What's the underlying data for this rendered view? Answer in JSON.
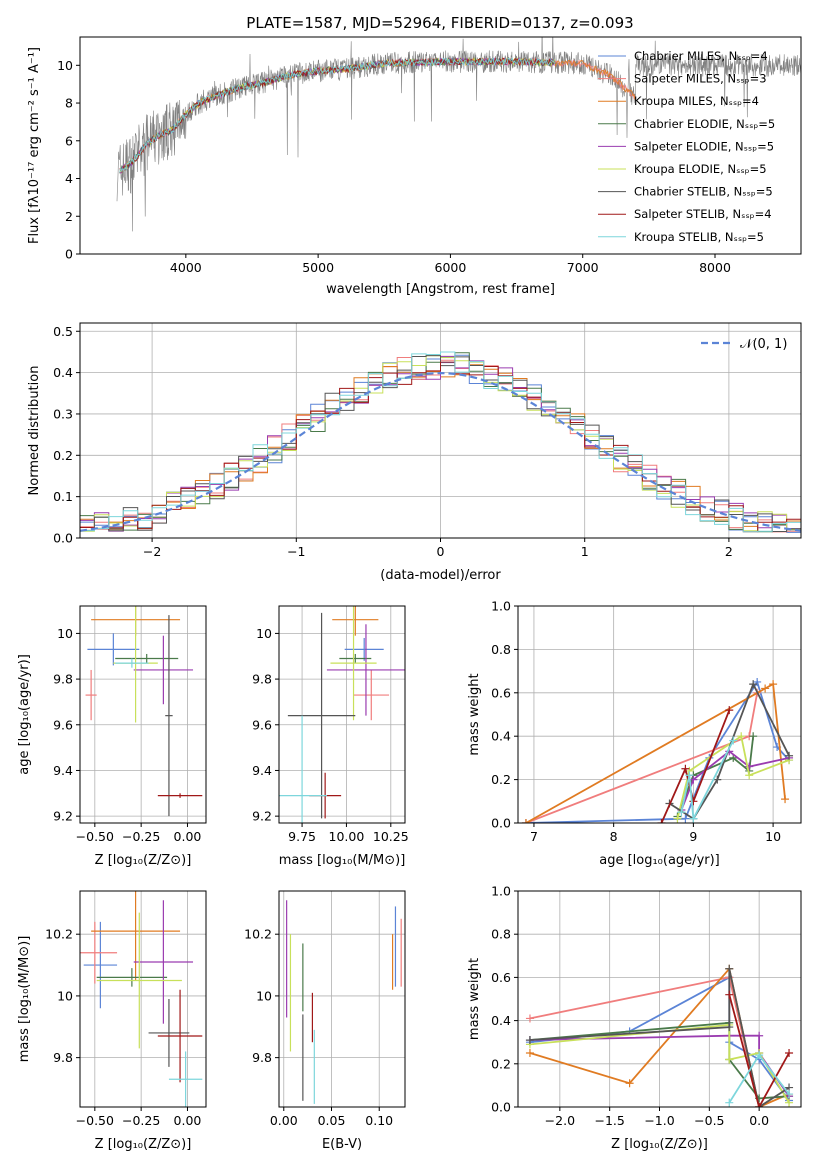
{
  "figure": {
    "title": "PLATE=1587, MJD=52964, FIBERID=0137, z=0.093",
    "colors": {
      "Chabrier MILES": "#5b84d6",
      "Salpeter MILES": "#f07d7d",
      "Kroupa MILES": "#e07b22",
      "Chabrier ELODIE": "#4a7a4a",
      "Salpeter ELODIE": "#9a3cb0",
      "Kroupa ELODIE": "#c8e05a",
      "Chabrier STELIB": "#555555",
      "Salpeter STELIB": "#a01818",
      "Kroupa STELIB": "#7dd6dc",
      "data": "#808080"
    }
  },
  "chart_data": [
    {
      "id": "spectrum",
      "type": "line",
      "title": "PLATE=1587, MJD=52964, FIBERID=0137, z=0.093",
      "xlabel": "wavelength [Angstrom, rest frame]",
      "ylabel": "Flux [fλ10⁻¹⁷ erg cm⁻² s⁻¹ A⁻¹]",
      "xlim": [
        3200,
        8650
      ],
      "ylim": [
        0,
        11.5
      ],
      "xticks": [
        4000,
        5000,
        6000,
        7000,
        8000
      ],
      "yticks": [
        0,
        2,
        4,
        6,
        8,
        10
      ],
      "grid": false,
      "legend_position": "top-right",
      "legend": [
        "Chabrier MILES, Nₛₛₚ=4",
        "Salpeter MILES, Nₛₛₚ=3",
        "Kroupa MILES, Nₛₛₚ=4",
        "Chabrier ELODIE, Nₛₛₚ=5",
        "Salpeter ELODIE, Nₛₛₚ=5",
        "Kroupa ELODIE, Nₛₛₚ=5",
        "Chabrier STELIB, Nₛₛₚ=5",
        "Salpeter STELIB, Nₛₛₚ=4",
        "Kroupa STELIB, Nₛₛₚ=5"
      ],
      "continuum": {
        "x": [
          3500,
          3600,
          3700,
          3800,
          3900,
          4000,
          4100,
          4200,
          4400,
          4600,
          4800,
          5000,
          5200,
          5500,
          6000,
          6500,
          7000,
          7200,
          7400
        ],
        "y": [
          4.4,
          4.9,
          5.8,
          6.3,
          6.6,
          7.4,
          8.0,
          8.3,
          8.8,
          9.1,
          9.5,
          9.7,
          9.8,
          10.1,
          10.2,
          10.2,
          10.1,
          9.5,
          8.3
        ]
      }
    },
    {
      "id": "residuals",
      "type": "line",
      "xlabel": "(data-model)/error",
      "ylabel": "Normed distribution",
      "xlim": [
        -2.5,
        2.5
      ],
      "ylim": [
        0,
        0.52
      ],
      "xticks": [
        -2,
        -1,
        0,
        1,
        2
      ],
      "yticks": [
        0.0,
        0.1,
        0.2,
        0.3,
        0.4,
        0.5
      ],
      "grid": true,
      "legend_position": "top-right",
      "legend": [
        "𝒩(0, 1)"
      ],
      "bin_width": 0.1
    },
    {
      "id": "age-vs-metallicity",
      "type": "scatter",
      "xlabel": "Z [log₁₀(Z/Z⊙)]",
      "ylabel": "age  [log₁₀(age/yr)]",
      "xlim": [
        -0.58,
        0.1
      ],
      "ylim": [
        9.17,
        10.12
      ],
      "xticks": [
        -0.5,
        -0.25,
        0.0
      ],
      "xtick_labels": [
        "−0.50",
        "−0.25",
        "0.00"
      ],
      "yticks": [
        9.2,
        9.4,
        9.6,
        9.8,
        10.0
      ],
      "grid": true,
      "points": [
        {
          "s": "Chabrier MILES",
          "x": -0.4,
          "xerr": 0.14,
          "y": 9.93,
          "yerr": 0.07
        },
        {
          "s": "Salpeter MILES",
          "x": -0.52,
          "xerr": 0.03,
          "y": 9.73,
          "yerr": 0.11
        },
        {
          "s": "Kroupa MILES",
          "x": -0.28,
          "xerr": 0.24,
          "y": 10.06,
          "yerr": 0.07
        },
        {
          "s": "Chabrier ELODIE",
          "x": -0.22,
          "xerr": 0.17,
          "y": 9.89,
          "yerr": 0.02
        },
        {
          "s": "Salpeter ELODIE",
          "x": -0.13,
          "xerr": 0.16,
          "y": 9.84,
          "yerr": 0.15
        },
        {
          "s": "Kroupa ELODIE",
          "x": -0.28,
          "xerr": 0.12,
          "y": 9.87,
          "yerr": 0.26
        },
        {
          "s": "Chabrier STELIB",
          "x": -0.1,
          "xerr": 0.02,
          "y": 9.64,
          "yerr": 0.44
        },
        {
          "s": "Salpeter STELIB",
          "x": -0.04,
          "xerr": 0.12,
          "y": 9.29,
          "yerr": 0.01
        },
        {
          "s": "Kroupa STELIB",
          "x": -0.3,
          "xerr": 0.09,
          "y": 9.87,
          "yerr": 0.02
        }
      ]
    },
    {
      "id": "age-vs-mass",
      "type": "scatter",
      "xlabel": "mass [log₁₀(M/M⊙)]",
      "ylabel": "",
      "xlim": [
        9.62,
        10.33
      ],
      "ylim": [
        9.17,
        10.12
      ],
      "xticks": [
        9.75,
        10.0,
        10.25
      ],
      "xtick_labels": [
        "9.75",
        "10.00",
        "10.25"
      ],
      "yticks": [
        9.2,
        9.4,
        9.6,
        9.8,
        10.0
      ],
      "grid": true,
      "points": [
        {
          "s": "Chabrier MILES",
          "x": 10.1,
          "xerr": 0.11,
          "y": 9.93,
          "yerr": 0.05
        },
        {
          "s": "Salpeter MILES",
          "x": 10.14,
          "xerr": 0.1,
          "y": 9.73,
          "yerr": 0.11
        },
        {
          "s": "Kroupa MILES",
          "x": 10.05,
          "xerr": 0.13,
          "y": 10.06,
          "yerr": 0.07
        },
        {
          "s": "Chabrier ELODIE",
          "x": 10.05,
          "xerr": 0.09,
          "y": 9.89,
          "yerr": 0.02
        },
        {
          "s": "Salpeter ELODIE",
          "x": 10.11,
          "xerr": 0.22,
          "y": 9.84,
          "yerr": 0.2
        },
        {
          "s": "Kroupa ELODIE",
          "x": 10.04,
          "xerr": 0.13,
          "y": 9.87,
          "yerr": 0.25
        },
        {
          "s": "Chabrier STELIB",
          "x": 9.86,
          "xerr": 0.19,
          "y": 9.64,
          "yerr": 0.45
        },
        {
          "s": "Salpeter STELIB",
          "x": 9.88,
          "xerr": 0.09,
          "y": 9.29,
          "yerr": 0.1
        },
        {
          "s": "Kroupa STELIB",
          "x": 9.75,
          "xerr": 0.14,
          "y": 9.29,
          "yerr": 0.35
        }
      ]
    },
    {
      "id": "mass-weight-vs-age",
      "type": "line",
      "xlabel": "age  [log₁₀(age/yr)]",
      "ylabel": "mass weight",
      "xlim": [
        6.8,
        10.35
      ],
      "ylim": [
        0,
        1.0
      ],
      "xticks": [
        7,
        8,
        9,
        10
      ],
      "yticks": [
        0.0,
        0.2,
        0.4,
        0.6,
        0.8,
        1.0
      ],
      "grid": true,
      "series": [
        {
          "s": "Chabrier MILES",
          "x": [
            6.9,
            8.9,
            9.2,
            9.8,
            10.05,
            10.2
          ],
          "y": [
            0.0,
            0.02,
            0.3,
            0.65,
            0.35,
            0.29
          ]
        },
        {
          "s": "Salpeter MILES",
          "x": [
            6.9,
            9.7,
            9.8
          ],
          "y": [
            0.0,
            0.4,
            0.6
          ]
        },
        {
          "s": "Kroupa MILES",
          "x": [
            6.9,
            9.9,
            10.0,
            10.15
          ],
          "y": [
            0.0,
            0.62,
            0.64,
            0.11
          ]
        },
        {
          "s": "Chabrier ELODIE",
          "x": [
            8.8,
            9.0,
            9.5,
            9.7,
            9.75
          ],
          "y": [
            0.03,
            0.22,
            0.3,
            0.24,
            0.4
          ]
        },
        {
          "s": "Salpeter ELODIE",
          "x": [
            8.85,
            9.0,
            9.45,
            9.7,
            10.2
          ],
          "y": [
            0.06,
            0.2,
            0.33,
            0.26,
            0.3
          ]
        },
        {
          "s": "Kroupa ELODIE",
          "x": [
            8.8,
            8.95,
            9.6,
            9.7,
            10.2
          ],
          "y": [
            0.02,
            0.24,
            0.4,
            0.22,
            0.29
          ]
        },
        {
          "s": "Chabrier STELIB",
          "x": [
            8.7,
            9.0,
            9.3,
            9.75,
            10.2
          ],
          "y": [
            0.09,
            0.02,
            0.2,
            0.64,
            0.31
          ]
        },
        {
          "s": "Salpeter STELIB",
          "x": [
            8.6,
            8.9,
            9.0,
            9.45
          ],
          "y": [
            0.0,
            0.25,
            0.1,
            0.52
          ]
        },
        {
          "s": "Kroupa STELIB",
          "x": [
            8.85,
            8.95,
            9.0,
            9.5
          ],
          "y": [
            0.05,
            0.22,
            0.02,
            0.38
          ]
        }
      ]
    },
    {
      "id": "mass-vs-metallicity",
      "type": "scatter",
      "xlabel": "Z [log₁₀(Z/Z⊙)]",
      "ylabel": "mass [log₁₀(M/M⊙)]",
      "xlim": [
        -0.58,
        0.1
      ],
      "ylim": [
        9.64,
        10.34
      ],
      "xticks": [
        -0.5,
        -0.25,
        0.0
      ],
      "xtick_labels": [
        "−0.50",
        "−0.25",
        "0.00"
      ],
      "yticks": [
        9.8,
        10.0,
        10.2
      ],
      "grid": true,
      "points": [
        {
          "s": "Chabrier MILES",
          "x": -0.47,
          "xerr": 0.09,
          "y": 10.1,
          "yerr": 0.14
        },
        {
          "s": "Salpeter MILES",
          "x": -0.5,
          "xerr": 0.12,
          "y": 10.14,
          "yerr": 0.1
        },
        {
          "s": "Kroupa MILES",
          "x": -0.28,
          "xerr": 0.24,
          "y": 10.21,
          "yerr": 0.16
        },
        {
          "s": "Chabrier ELODIE",
          "x": -0.3,
          "xerr": 0.19,
          "y": 10.06,
          "yerr": 0.03
        },
        {
          "s": "Salpeter ELODIE",
          "x": -0.13,
          "xerr": 0.16,
          "y": 10.11,
          "yerr": 0.2
        },
        {
          "s": "Kroupa ELODIE",
          "x": -0.26,
          "xerr": 0.23,
          "y": 10.05,
          "yerr": 0.22
        },
        {
          "s": "Chabrier STELIB",
          "x": -0.1,
          "xerr": 0.11,
          "y": 9.88,
          "yerr": 0.11
        },
        {
          "s": "Salpeter STELIB",
          "x": -0.04,
          "xerr": 0.12,
          "y": 9.87,
          "yerr": 0.15
        },
        {
          "s": "Kroupa STELIB",
          "x": -0.01,
          "xerr": 0.09,
          "y": 9.73,
          "yerr": 0.09
        }
      ]
    },
    {
      "id": "mass-vs-extinction",
      "type": "scatter",
      "xlabel": "E(B-V)",
      "ylabel": "",
      "xlim": [
        -0.005,
        0.127
      ],
      "ylim": [
        9.64,
        10.34
      ],
      "xticks": [
        0.0,
        0.05,
        0.1
      ],
      "xtick_labels": [
        "0.00",
        "0.05",
        "0.10"
      ],
      "yticks": [
        9.8,
        10.0,
        10.2
      ],
      "grid": true,
      "points": [
        {
          "s": "Chabrier MILES",
          "x": 0.117,
          "xerr": 0,
          "y": 10.16,
          "yerr": 0.13
        },
        {
          "s": "Salpeter MILES",
          "x": 0.123,
          "xerr": 0,
          "y": 10.14,
          "yerr": 0.11
        },
        {
          "s": "Kroupa MILES",
          "x": 0.114,
          "xerr": 0,
          "y": 10.11,
          "yerr": 0.09
        },
        {
          "s": "Chabrier ELODIE",
          "x": 0.02,
          "xerr": 0,
          "y": 10.06,
          "yerr": 0.11
        },
        {
          "s": "Salpeter ELODIE",
          "x": 0.003,
          "xerr": 0,
          "y": 10.12,
          "yerr": 0.19
        },
        {
          "s": "Kroupa ELODIE",
          "x": 0.007,
          "xerr": 0,
          "y": 10.01,
          "yerr": 0.19
        },
        {
          "s": "Chabrier STELIB",
          "x": 0.02,
          "xerr": 0,
          "y": 9.8,
          "yerr": 0.14
        },
        {
          "s": "Salpeter STELIB",
          "x": 0.03,
          "xerr": 0,
          "y": 9.93,
          "yerr": 0.08
        },
        {
          "s": "Kroupa STELIB",
          "x": 0.032,
          "xerr": 0,
          "y": 9.77,
          "yerr": 0.12
        }
      ]
    },
    {
      "id": "mass-weight-vs-metallicity",
      "type": "line",
      "xlabel": "Z [log₁₀(Z/Z⊙)]",
      "ylabel": "mass weight",
      "xlim": [
        -2.42,
        0.42
      ],
      "ylim": [
        0,
        1.0
      ],
      "xticks": [
        -2.0,
        -1.5,
        -1.0,
        -0.5,
        0.0
      ],
      "xtick_labels": [
        "−2.0",
        "−1.5",
        "−1.0",
        "−0.5",
        "0.0"
      ],
      "yticks": [
        0.0,
        0.2,
        0.4,
        0.6,
        0.8,
        1.0
      ],
      "grid": true,
      "series": [
        {
          "s": "Chabrier MILES",
          "x": [
            -2.3,
            -1.3,
            -0.3,
            -0.3,
            0.0,
            0.3
          ],
          "y": [
            0.3,
            0.35,
            0.6,
            0.3,
            0.22,
            0.03
          ]
        },
        {
          "s": "Salpeter MILES",
          "x": [
            -2.3,
            -0.3,
            0.0
          ],
          "y": [
            0.41,
            0.6,
            0.0
          ]
        },
        {
          "s": "Kroupa MILES",
          "x": [
            -2.3,
            -1.3,
            -0.3,
            0.0,
            0.3
          ],
          "y": [
            0.25,
            0.11,
            0.64,
            0.0,
            0.06
          ]
        },
        {
          "s": "Chabrier ELODIE",
          "x": [
            -2.3,
            -0.3,
            -0.3,
            0.0,
            0.3
          ],
          "y": [
            0.31,
            0.39,
            0.22,
            0.04,
            0.05
          ]
        },
        {
          "s": "Salpeter ELODIE",
          "x": [
            -2.3,
            -0.3,
            0.0,
            0.0,
            0.3
          ],
          "y": [
            0.31,
            0.33,
            0.33,
            0.25,
            0.05
          ]
        },
        {
          "s": "Kroupa ELODIE",
          "x": [
            -2.3,
            -0.3,
            -0.3,
            0.0,
            0.3
          ],
          "y": [
            0.29,
            0.38,
            0.22,
            0.25,
            0.02
          ]
        },
        {
          "s": "Chabrier STELIB",
          "x": [
            -2.3,
            -0.3,
            -0.3,
            0.0,
            0.3
          ],
          "y": [
            0.31,
            0.37,
            0.64,
            0.0,
            0.09
          ]
        },
        {
          "s": "Salpeter STELIB",
          "x": [
            -0.3,
            0.0,
            0.3
          ],
          "y": [
            0.52,
            0.0,
            0.25
          ]
        },
        {
          "s": "Kroupa STELIB",
          "x": [
            -0.3,
            0.0,
            0.3
          ],
          "y": [
            0.02,
            0.24,
            0.06
          ]
        }
      ]
    }
  ]
}
